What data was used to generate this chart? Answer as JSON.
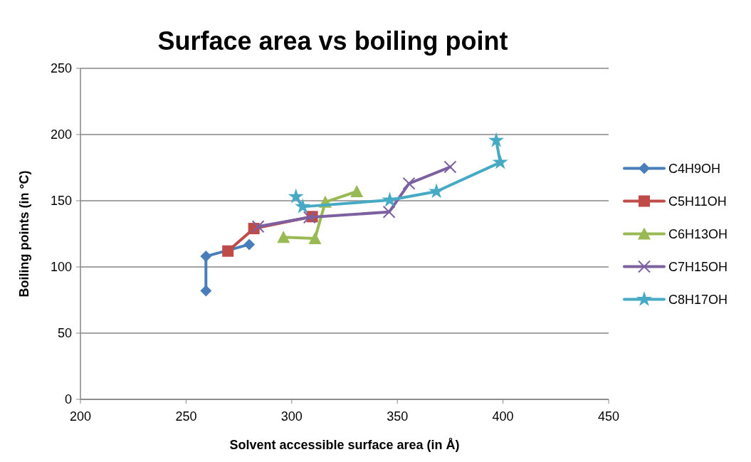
{
  "chart_data": {
    "type": "line",
    "title": "Surface area vs boiling point",
    "xlabel": "Solvent accessible surface area (in Å)",
    "ylabel": "Boiling points (in °C)",
    "xlim": [
      200,
      450
    ],
    "xticks": [
      200,
      250,
      300,
      350,
      400,
      450
    ],
    "ylim": [
      0,
      250
    ],
    "yticks": [
      0,
      50,
      100,
      150,
      200,
      250
    ],
    "grid": "y",
    "legend": "right",
    "line_style": "solid",
    "series": [
      {
        "name": "C4H9OH",
        "color": "#4a7ebb",
        "marker": "diamond",
        "x": [
          259.4,
          259.4,
          279.9
        ],
        "values": [
          82,
          108,
          117
        ]
      },
      {
        "name": "C5H11OH",
        "color": "#be4b48",
        "marker": "square",
        "x": [
          269.8,
          282.1,
          309.7
        ],
        "values": [
          112,
          129,
          138
        ]
      },
      {
        "name": "C6H13OH",
        "color": "#98b954",
        "marker": "triangle",
        "x": [
          296.1,
          311,
          315.9,
          330.8
        ],
        "values": [
          122.5,
          121.5,
          149,
          157
        ]
      },
      {
        "name": "C7H15OH",
        "color": "#7d60a0",
        "marker": "cross",
        "x": [
          284.1,
          308.4,
          346.1,
          355.5,
          375
        ],
        "values": [
          130.5,
          137.5,
          141.5,
          163,
          175.5
        ]
      },
      {
        "name": "C8H17OH",
        "color": "#46aac5",
        "marker": "star",
        "x": [
          302,
          305.2,
          346.4,
          368.5,
          398.7,
          396.8
        ],
        "values": [
          153,
          145.5,
          150.5,
          157,
          179,
          195.5
        ]
      }
    ]
  }
}
